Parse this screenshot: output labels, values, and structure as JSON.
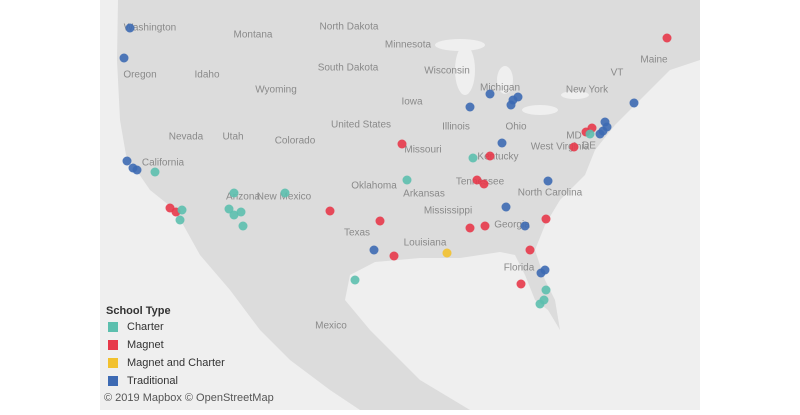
{
  "map_labels": [
    "Washington",
    "Oregon",
    "Idaho",
    "Montana",
    "North Dakota",
    "South Dakota",
    "Wyoming",
    "Minnesota",
    "Wisconsin",
    "Iowa",
    "Michigan",
    "United States",
    "Nevada",
    "Utah",
    "Colorado",
    "Missouri",
    "Illinois",
    "Ohio",
    "New York",
    "VT",
    "Maine",
    "Kentucky",
    "West Virginia",
    "MD",
    "DE",
    "California",
    "Arizona",
    "New Mexico",
    "Oklahoma",
    "Arkansas",
    "Tennessee",
    "North Carolina",
    "Mississippi",
    "Georgia",
    "Texas",
    "Louisiana",
    "Florida",
    "Mexico"
  ],
  "legend": {
    "title": "School Type",
    "items": [
      {
        "name": "Charter",
        "color": "#5cbfae"
      },
      {
        "name": "Magnet",
        "color": "#e7394a"
      },
      {
        "name": "Magnet and Charter",
        "color": "#f2c12e"
      },
      {
        "name": "Traditional",
        "color": "#3d6ab3"
      }
    ]
  },
  "attribution": "© 2019 Mapbox © OpenStreetMap"
}
